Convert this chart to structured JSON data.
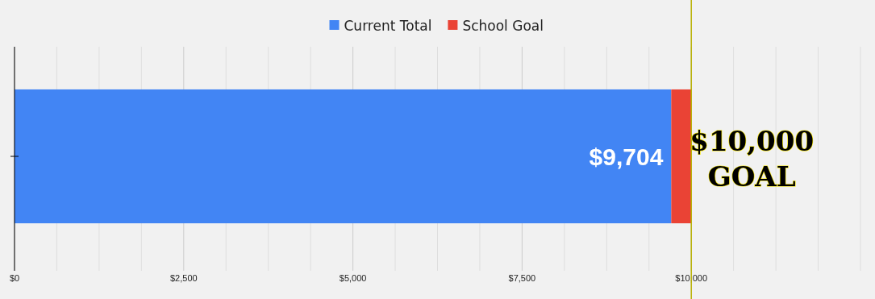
{
  "chart_data": {
    "type": "bar",
    "orientation": "horizontal",
    "stacked": true,
    "categories": [
      null
    ],
    "series": [
      {
        "name": "Current Total",
        "color": "#4285f4",
        "values": [
          9704
        ],
        "value_labels": [
          "$9,704"
        ]
      },
      {
        "name": "School Goal",
        "color": "#ea4335",
        "values": [
          296
        ]
      }
    ],
    "xlim": [
      0,
      12500
    ],
    "xticks": [
      {
        "value": 0,
        "label": "$0"
      },
      {
        "value": 625,
        "label": null
      },
      {
        "value": 1250,
        "label": null
      },
      {
        "value": 1875,
        "label": null
      },
      {
        "value": 2500,
        "label": "$2,500"
      },
      {
        "value": 3125,
        "label": null
      },
      {
        "value": 3750,
        "label": null
      },
      {
        "value": 4375,
        "label": null
      },
      {
        "value": 5000,
        "label": "$5,000"
      },
      {
        "value": 5625,
        "label": null
      },
      {
        "value": 6250,
        "label": null
      },
      {
        "value": 6875,
        "label": null
      },
      {
        "value": 7500,
        "label": "$7,500"
      },
      {
        "value": 8125,
        "label": null
      },
      {
        "value": 8750,
        "label": null
      },
      {
        "value": 9375,
        "label": null
      },
      {
        "value": 10000,
        "label": "$10,000"
      },
      {
        "value": 10625,
        "label": null
      },
      {
        "value": 11250,
        "label": null
      },
      {
        "value": 11875,
        "label": null
      },
      {
        "value": 12500,
        "label": null
      }
    ],
    "grid": "x",
    "legend": "top",
    "ref_lines": [
      {
        "axis": "x",
        "value": 10000,
        "label": "$10,000 GOAL",
        "color": "#b8b000"
      }
    ]
  }
}
